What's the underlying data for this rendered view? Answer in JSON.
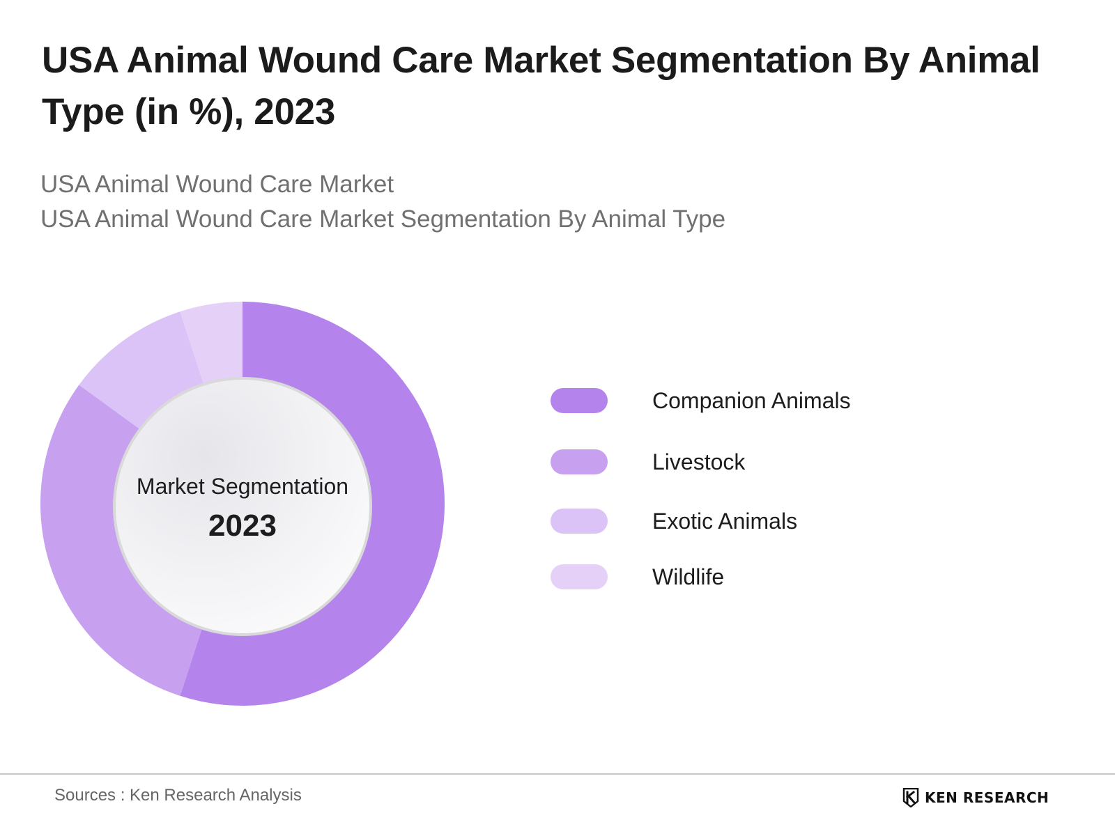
{
  "title": "USA Animal Wound Care Market Segmentation By Animal Type (in %), 2023",
  "subtitle_lines": [
    "USA Animal Wound Care Market",
    "USA Animal Wound Care Market Segmentation By Animal Type"
  ],
  "center": {
    "label": "Market Segmentation",
    "year": "2023"
  },
  "colors": {
    "Companion Animals": "#b484ec",
    "Livestock": "#c8a0f0",
    "Exotic Animals": "#dbc3f7",
    "Wildlife": "#e5d1f8"
  },
  "chart_data": {
    "type": "pie",
    "variant": "donut",
    "categories": [
      "Companion Animals",
      "Livestock",
      "Exotic Animals",
      "Wildlife"
    ],
    "values": [
      55,
      30,
      10,
      5
    ],
    "unit": "%",
    "legend_position": "right"
  },
  "footer": {
    "source": "Sources : Ken Research Analysis",
    "brand": "KEN RESEARCH",
    "brand_icon": "ken-research-logo-icon"
  }
}
